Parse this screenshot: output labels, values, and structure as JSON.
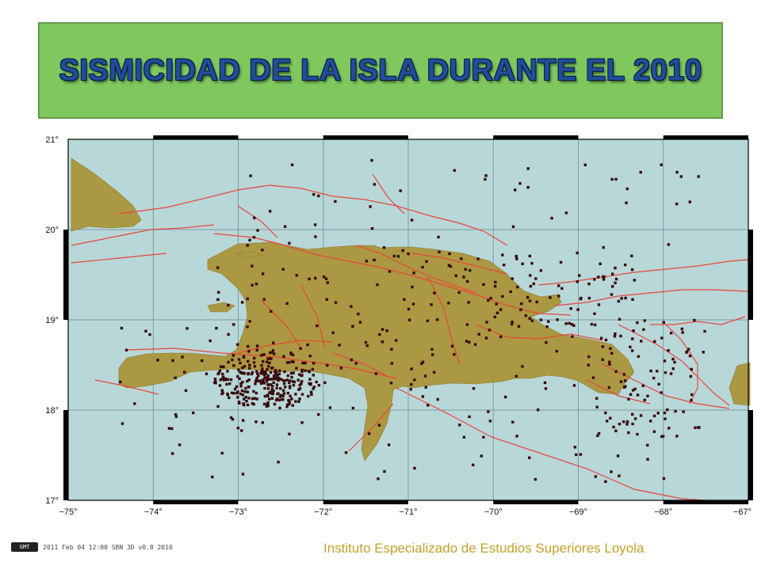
{
  "title": "SISMICIDAD DE LA ISLA DURANTE EL  2010",
  "footer": "Instituto Especializado de Estudios Superiores Loyola",
  "map": {
    "lat_labels": [
      "21°",
      "20°",
      "19°",
      "18°",
      "17°"
    ],
    "lon_labels": [
      "−75°",
      "−74°",
      "−73°",
      "−72°",
      "−71°",
      "−70°",
      "−69°",
      "−68°",
      "−67°"
    ],
    "colors": {
      "sea": "#b8d7d8",
      "land": "#ab9842",
      "fault": "#e8463c",
      "quake": "#3a0a0a",
      "grid": "#7b9ea3"
    }
  },
  "credit": {
    "logo": "GMT",
    "text": "2011 Feb 04 12:00   SBN 3D v0.8 2010"
  }
}
